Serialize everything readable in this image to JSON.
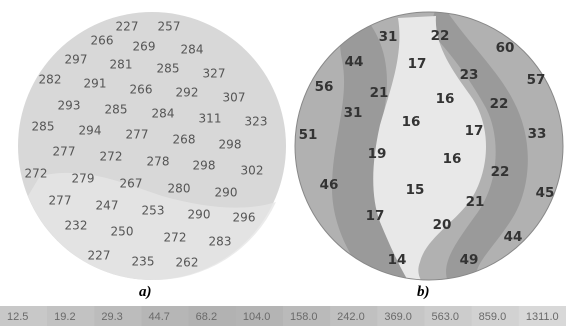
{
  "colors": {
    "panel_a_fill": "#d8d8d8",
    "panel_a_shade": "#e6e6e6",
    "panel_b_base": "#b1b1b1",
    "panel_b_dark": "#9a9a9a",
    "panel_b_light": "#e8e8e8",
    "panel_b_edge": "#888888"
  },
  "panels": [
    {
      "label": "a)",
      "values": [
        "227",
        "257",
        "266",
        "269",
        "284",
        "297",
        "281",
        "285",
        "327",
        "282",
        "291",
        "266",
        "292",
        "307",
        "293",
        "285",
        "284",
        "311",
        "323",
        "285",
        "294",
        "277",
        "268",
        "298",
        "277",
        "272",
        "278",
        "298",
        "302",
        "272",
        "279",
        "267",
        "280",
        "290",
        "277",
        "247",
        "253",
        "290",
        "296",
        "232",
        "250",
        "272",
        "283",
        "227",
        "235",
        "262"
      ]
    },
    {
      "label": "b)",
      "values": [
        "31",
        "22",
        "60",
        "44",
        "17",
        "23",
        "57",
        "56",
        "21",
        "16",
        "22",
        "31",
        "16",
        "17",
        "33",
        "51",
        "19",
        "16",
        "22",
        "46",
        "15",
        "45",
        "17",
        "21",
        "20",
        "44",
        "14",
        "49"
      ]
    }
  ],
  "colorbar": {
    "ticks": [
      "12.5",
      "19.2",
      "29.3",
      "44.7",
      "68.2",
      "104.0",
      "158.0",
      "242.0",
      "369.0",
      "563.0",
      "859.0",
      "1311.0"
    ],
    "colors": [
      "#c8c8c8",
      "#c2c2c2",
      "#bcbcbc",
      "#b6b6b6",
      "#b2b2b2",
      "#b4b4b4",
      "#bababa",
      "#c0c0c0",
      "#c6c6c6",
      "#cccccc",
      "#d2d2d2",
      "#d8d8d8"
    ]
  }
}
